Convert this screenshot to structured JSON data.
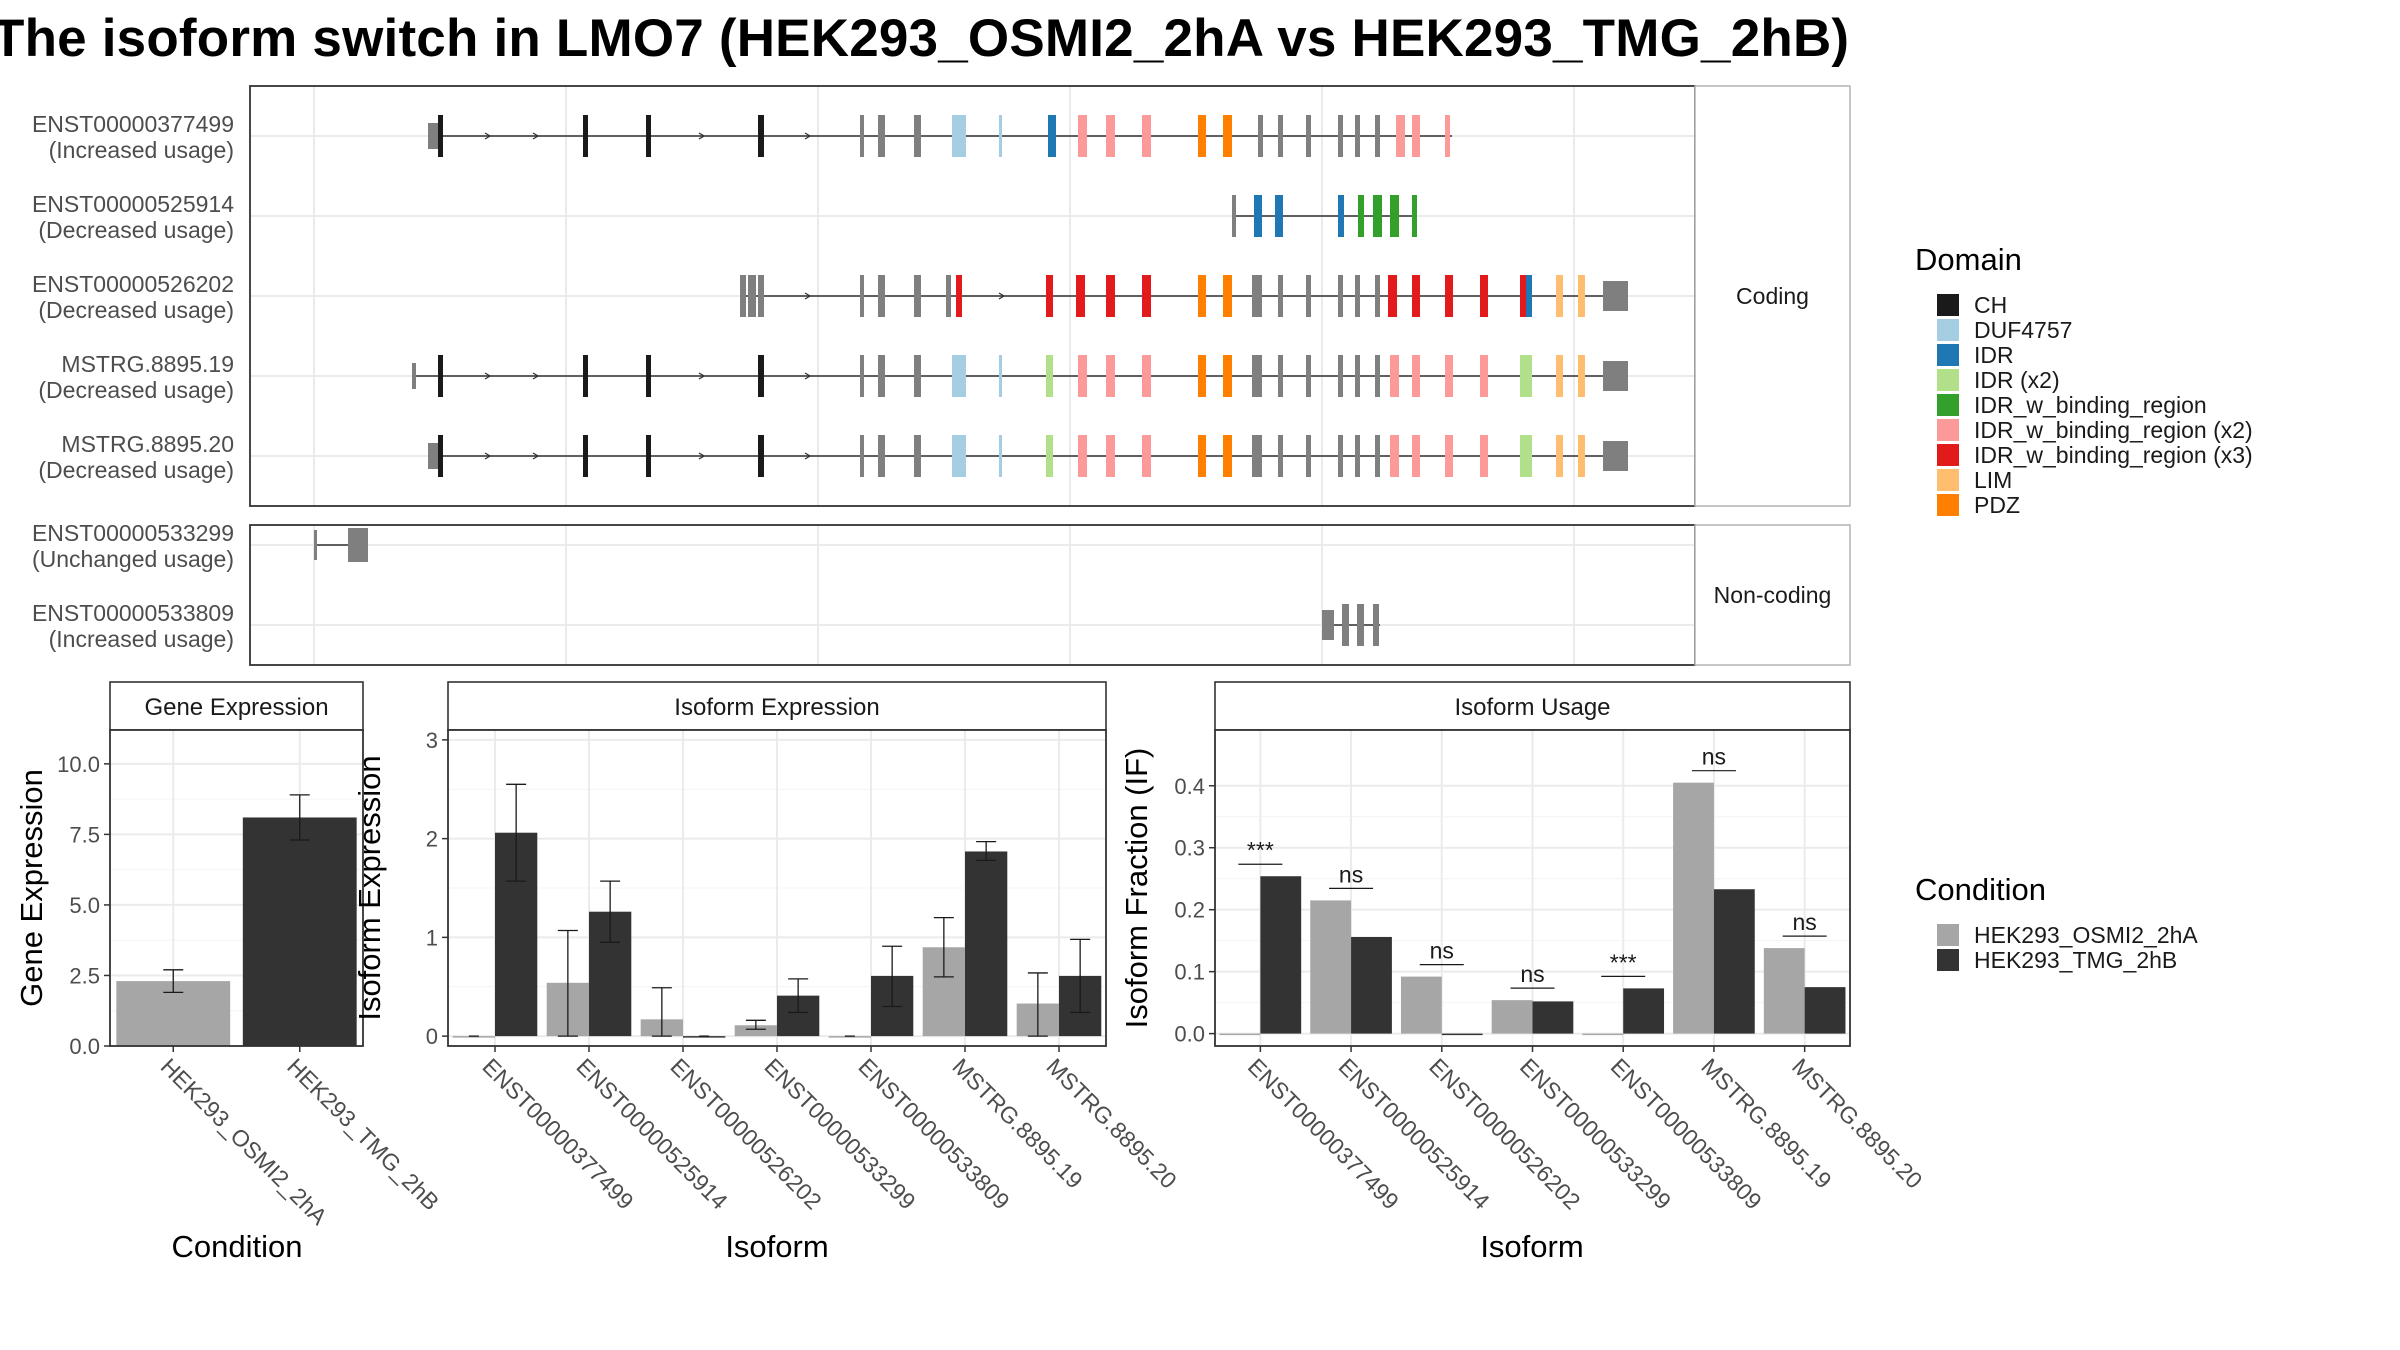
{
  "title": "The isoform switch in LMO7 (HEK293_OSMI2_2hA vs HEK293_TMG_2hB)",
  "colors": {
    "intron": "#333333",
    "exon_gray": "#7f7f7f",
    "condition_A": "#a6a6a6",
    "condition_B": "#333333",
    "strip_bg": "#ffffff",
    "grid": "#ebebeb",
    "panel_border": "#333333"
  },
  "legends": {
    "domain": {
      "title": "Domain",
      "items": [
        {
          "label": "CH",
          "color": "#1a1a1a"
        },
        {
          "label": "DUF4757",
          "color": "#a6cee3"
        },
        {
          "label": "IDR",
          "color": "#1f78b4"
        },
        {
          "label": "IDR (x2)",
          "color": "#b2df8a"
        },
        {
          "label": "IDR_w_binding_region",
          "color": "#33a02c"
        },
        {
          "label": "IDR_w_binding_region (x2)",
          "color": "#fb9a99"
        },
        {
          "label": "IDR_w_binding_region (x3)",
          "color": "#e31a1c"
        },
        {
          "label": "LIM",
          "color": "#fdbf6f"
        },
        {
          "label": "PDZ",
          "color": "#ff7f00"
        }
      ]
    },
    "condition": {
      "title": "Condition",
      "items": [
        {
          "label": "HEK293_OSMI2_2hA",
          "color": "#a6a6a6"
        },
        {
          "label": "HEK293_TMG_2hB",
          "color": "#333333"
        }
      ]
    }
  },
  "chart_data": [
    {
      "type": "gene-structure",
      "facets": [
        {
          "strip": "Coding",
          "transcripts": [
            {
              "id": "ENST00000377499",
              "usage": "(Increased usage)"
            },
            {
              "id": "ENST00000525914",
              "usage": "(Decreased usage)"
            },
            {
              "id": "ENST00000526202",
              "usage": "(Decreased usage)"
            },
            {
              "id": "MSTRG.8895.19",
              "usage": "(Decreased usage)"
            },
            {
              "id": "MSTRG.8895.20",
              "usage": "(Decreased usage)"
            }
          ]
        },
        {
          "strip": "Non-coding",
          "transcripts": [
            {
              "id": "ENST00000533299",
              "usage": "(Unchanged usage)"
            },
            {
              "id": "ENST00000533809",
              "usage": "(Increased usage)"
            }
          ]
        }
      ]
    },
    {
      "type": "bar",
      "strip": "Gene Expression",
      "xlabel": "Condition",
      "ylabel": "Gene Expression",
      "ylim": [
        0,
        11.2
      ],
      "yticks": [
        0,
        2.5,
        5,
        7.5,
        10
      ],
      "ytick_labels": [
        "0.0",
        "2.5",
        "5.0",
        "7.5",
        "10.0"
      ],
      "categories": [
        "HEK293_OSMI2_2hA",
        "HEK293_TMG_2hB"
      ],
      "values": [
        2.3,
        8.1
      ],
      "errors": [
        [
          1.9,
          2.7
        ],
        [
          7.3,
          8.9
        ]
      ]
    },
    {
      "type": "bar",
      "strip": "Isoform Expression",
      "xlabel": "Isoform",
      "ylabel": "Isoform Expression",
      "ylim": [
        -0.1,
        3.1
      ],
      "yticks": [
        0,
        1,
        2,
        3
      ],
      "ytick_labels": [
        "0",
        "1",
        "2",
        "3"
      ],
      "categories": [
        "ENST00000377499",
        "ENST00000525914",
        "ENST00000526202",
        "ENST00000533299",
        "ENST00000533809",
        "MSTRG.8895.19",
        "MSTRG.8895.20"
      ],
      "series": [
        {
          "name": "HEK293_OSMI2_2hA",
          "values": [
            0.0,
            0.54,
            0.17,
            0.11,
            0.0,
            0.9,
            0.33
          ],
          "errors": [
            [
              0.0,
              0.0
            ],
            [
              0.0,
              1.07
            ],
            [
              0.0,
              0.49
            ],
            [
              0.07,
              0.16
            ],
            [
              0.0,
              0.0
            ],
            [
              0.6,
              1.2
            ],
            [
              0.0,
              0.64
            ]
          ]
        },
        {
          "name": "HEK293_TMG_2hB",
          "values": [
            2.06,
            1.26,
            0.0,
            0.41,
            0.61,
            1.87,
            0.61
          ],
          "errors": [
            [
              1.57,
              2.55
            ],
            [
              0.95,
              1.57
            ],
            [
              0.0,
              0.0
            ],
            [
              0.24,
              0.58
            ],
            [
              0.3,
              0.91
            ],
            [
              1.78,
              1.97
            ],
            [
              0.24,
              0.98
            ]
          ]
        }
      ]
    },
    {
      "type": "bar",
      "strip": "Isoform Usage",
      "xlabel": "Isoform",
      "ylabel": "Isoform Fraction (IF)",
      "ylim": [
        -0.02,
        0.49
      ],
      "yticks": [
        0,
        0.1,
        0.2,
        0.3,
        0.4
      ],
      "ytick_labels": [
        "0.0",
        "0.1",
        "0.2",
        "0.3",
        "0.4"
      ],
      "categories": [
        "ENST00000377499",
        "ENST00000525914",
        "ENST00000526202",
        "ENST00000533299",
        "ENST00000533809",
        "MSTRG.8895.19",
        "MSTRG.8895.20"
      ],
      "series": [
        {
          "name": "HEK293_OSMI2_2hA",
          "values": [
            0.0,
            0.215,
            0.092,
            0.054,
            0.0,
            0.405,
            0.138
          ]
        },
        {
          "name": "HEK293_TMG_2hB",
          "values": [
            0.254,
            0.156,
            0.0,
            0.052,
            0.073,
            0.233,
            0.075
          ]
        }
      ],
      "significance": [
        "***",
        "ns",
        "ns",
        "ns",
        "***",
        "ns",
        "ns"
      ]
    }
  ]
}
